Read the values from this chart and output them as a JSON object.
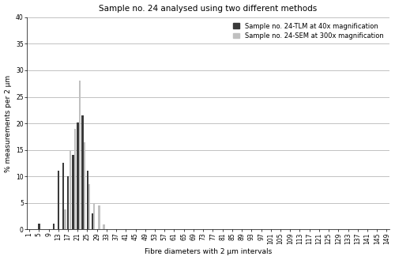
{
  "title": "Sample no. 24 analysed using two different methods",
  "xlabel": "Fibre diameters with 2 μm intervals",
  "ylabel": "% measurements per 2 μm",
  "ylim": [
    0,
    40
  ],
  "yticks": [
    0,
    5,
    10,
    15,
    20,
    25,
    30,
    35,
    40
  ],
  "x_categories": [
    "1",
    "5",
    "9",
    "13",
    "17",
    "21",
    "25",
    "29",
    "33",
    "37",
    "41",
    "45",
    "49",
    "53",
    "57",
    "61",
    "65",
    "69",
    "73",
    "77",
    "81",
    "85",
    "89",
    "93",
    "97",
    "101",
    "105",
    "109",
    "113",
    "117",
    "121",
    "125",
    "129",
    "133",
    "137",
    "141",
    "145",
    "149"
  ],
  "tlm_data": {
    "bin_starts": [
      5,
      9,
      11,
      13,
      15,
      17,
      19,
      21,
      23,
      25,
      27
    ],
    "values": [
      1.1,
      0.0,
      1.1,
      11.0,
      12.5,
      10.0,
      14.0,
      20.2,
      21.5,
      11.0,
      3.0
    ]
  },
  "sem_data": {
    "bin_starts": [
      15,
      17,
      19,
      21,
      23,
      25,
      27,
      29,
      31
    ],
    "values": [
      3.8,
      15.0,
      19.0,
      28.0,
      16.5,
      8.5,
      5.0,
      4.5,
      1.0
    ]
  },
  "tlm_color": "#3a3a3a",
  "sem_color": "#c0c0c0",
  "legend_tlm": "Sample no. 24-TLM at 40x magnification",
  "legend_sem": "Sample no. 24-SEM at 300x magnification",
  "background_color": "#ffffff",
  "grid_color": "#aaaaaa",
  "title_fontsize": 7.5,
  "axis_fontsize": 6.5,
  "tick_fontsize": 5.5,
  "legend_fontsize": 6
}
